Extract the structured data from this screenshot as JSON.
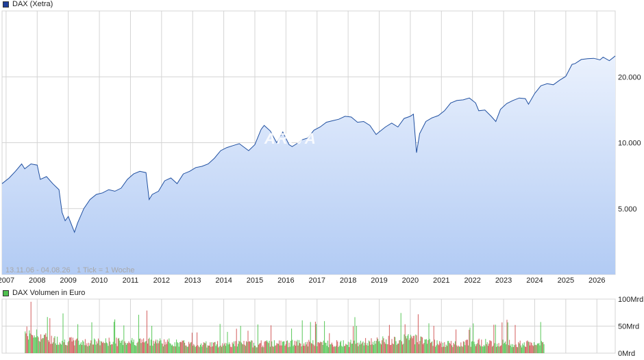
{
  "colors": {
    "price_line": "#1f4fa0",
    "area_top": "#eaf1fd",
    "area_bottom": "#b2cbf4",
    "grid": "#d4d4d4",
    "vol_up": "#58c758",
    "vol_down": "#d35d5d",
    "price_swatch": "#1f3f9a",
    "volume_swatch": "#4fbf4f"
  },
  "watermark": "ARIVA",
  "chart_data": [
    {
      "type": "line",
      "legend": "DAX (Xetra)",
      "range_label": "13.11.06 - 04.08.26",
      "interval_label": "1 Tick = 1 Woche",
      "x_ticks": [
        "2007",
        "2008",
        "2009",
        "2010",
        "2011",
        "2012",
        "2013",
        "2014",
        "2015",
        "2016",
        "2017",
        "2018",
        "2019",
        "2020",
        "2021",
        "2022",
        "2023",
        "2024",
        "2025",
        "2026"
      ],
      "y_ticks": [
        {
          "value": 5000,
          "label": "5.000"
        },
        {
          "value": 10000,
          "label": "10.000"
        },
        {
          "value": 20000,
          "label": "20.000"
        }
      ],
      "y_scale": "log",
      "ylim": [
        2500,
        40000
      ],
      "xlim": [
        2006.87,
        2026.59
      ],
      "grid": true,
      "series": [
        {
          "name": "DAX (Xetra)",
          "x": [
            2006.87,
            2007.1,
            2007.3,
            2007.5,
            2007.6,
            2007.8,
            2008.0,
            2008.1,
            2008.3,
            2008.5,
            2008.7,
            2008.8,
            2008.9,
            2009.0,
            2009.2,
            2009.3,
            2009.5,
            2009.7,
            2009.9,
            2010.1,
            2010.3,
            2010.5,
            2010.7,
            2010.9,
            2011.1,
            2011.3,
            2011.5,
            2011.6,
            2011.7,
            2011.9,
            2012.1,
            2012.3,
            2012.5,
            2012.7,
            2012.9,
            2013.1,
            2013.3,
            2013.5,
            2013.7,
            2013.9,
            2014.1,
            2014.3,
            2014.5,
            2014.8,
            2015.0,
            2015.2,
            2015.3,
            2015.5,
            2015.7,
            2015.9,
            2016.1,
            2016.2,
            2016.4,
            2016.5,
            2016.7,
            2016.9,
            2017.1,
            2017.3,
            2017.5,
            2017.7,
            2017.9,
            2018.1,
            2018.3,
            2018.5,
            2018.7,
            2018.9,
            2019.0,
            2019.2,
            2019.4,
            2019.6,
            2019.8,
            2020.0,
            2020.1,
            2020.2,
            2020.3,
            2020.5,
            2020.7,
            2020.9,
            2021.1,
            2021.3,
            2021.5,
            2021.7,
            2021.9,
            2022.1,
            2022.2,
            2022.4,
            2022.6,
            2022.75,
            2022.9,
            2023.1,
            2023.3,
            2023.5,
            2023.7,
            2023.8,
            2024.0,
            2024.2,
            2024.4,
            2024.6,
            2024.8,
            2025.0,
            2025.2,
            2025.3,
            2025.5,
            2025.7,
            2025.9,
            2026.1,
            2026.2,
            2026.4,
            2026.59
          ],
          "values": [
            6500,
            6900,
            7400,
            8000,
            7600,
            8000,
            7900,
            6800,
            7000,
            6500,
            6100,
            4800,
            4400,
            4600,
            3900,
            4300,
            5000,
            5500,
            5800,
            5900,
            6100,
            6000,
            6200,
            6800,
            7200,
            7400,
            7300,
            5500,
            5800,
            6000,
            6700,
            6900,
            6500,
            7200,
            7400,
            7700,
            7800,
            8000,
            8500,
            9200,
            9500,
            9700,
            9900,
            9200,
            9800,
            11500,
            12000,
            11300,
            10000,
            11200,
            9800,
            9600,
            10000,
            10300,
            10500,
            11400,
            11800,
            12400,
            12600,
            12800,
            13200,
            13100,
            12400,
            12500,
            12000,
            10900,
            11200,
            11800,
            12300,
            11800,
            12900,
            13200,
            13500,
            9000,
            11000,
            12500,
            13000,
            13300,
            14000,
            15200,
            15600,
            15700,
            16000,
            15200,
            14000,
            14100,
            13200,
            12500,
            14200,
            15100,
            15600,
            16000,
            15900,
            15000,
            16800,
            18200,
            18600,
            18400,
            19300,
            20100,
            22800,
            23000,
            24000,
            24200,
            24300,
            23900,
            24600,
            23700,
            24900
          ]
        }
      ]
    },
    {
      "type": "bar",
      "legend": "DAX Volumen in Euro",
      "y_ticks": [
        {
          "value": 0,
          "label": "0Mrd"
        },
        {
          "value": 50,
          "label": "50Mrd"
        },
        {
          "value": 100,
          "label": "100Mrd"
        }
      ],
      "ylim": [
        0,
        100
      ],
      "x_range": [
        2006.87,
        2024.3
      ],
      "series_levels": [
        {
          "x": 2006.87,
          "value": 30
        },
        {
          "x": 2007.2,
          "value": 45
        },
        {
          "x": 2007.7,
          "value": 42
        },
        {
          "x": 2008.4,
          "value": 28
        },
        {
          "x": 2009.5,
          "value": 22
        },
        {
          "x": 2011.6,
          "value": 25
        },
        {
          "x": 2013.0,
          "value": 18
        },
        {
          "x": 2016.0,
          "value": 20
        },
        {
          "x": 2018.0,
          "value": 20
        },
        {
          "x": 2020.2,
          "value": 30
        },
        {
          "x": 2021.0,
          "value": 18
        },
        {
          "x": 2022.2,
          "value": 22
        },
        {
          "x": 2024.3,
          "value": 18
        }
      ]
    }
  ]
}
